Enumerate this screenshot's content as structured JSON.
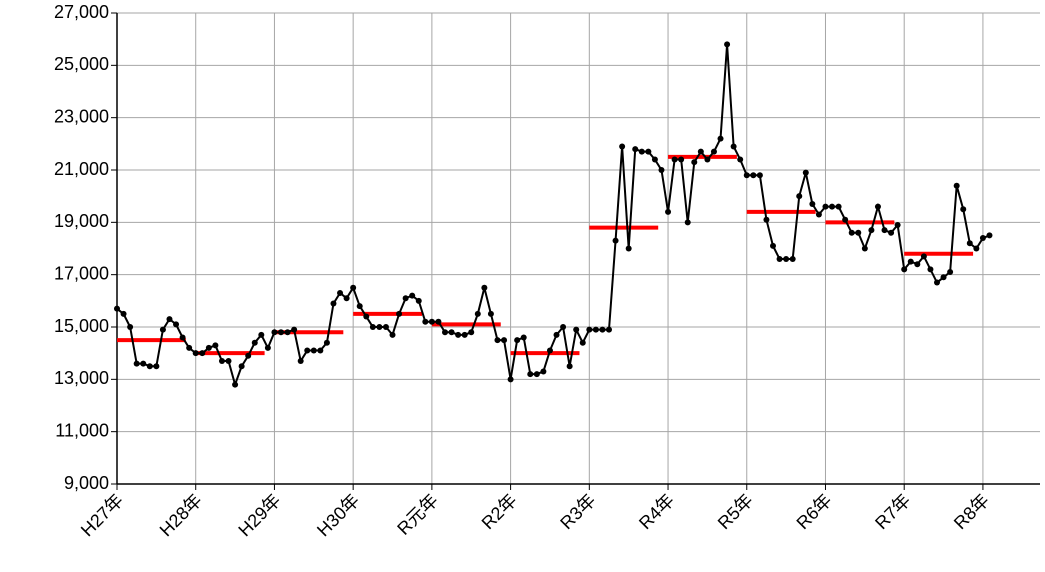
{
  "chart_data": {
    "type": "line",
    "categories": [
      "H27年",
      null,
      null,
      null,
      null,
      null,
      null,
      null,
      null,
      null,
      null,
      null,
      "H28年",
      null,
      null,
      null,
      null,
      null,
      null,
      null,
      null,
      null,
      null,
      null,
      "H29年",
      null,
      null,
      null,
      null,
      null,
      null,
      null,
      null,
      null,
      null,
      null,
      "H30年",
      null,
      null,
      null,
      null,
      null,
      null,
      null,
      null,
      null,
      null,
      null,
      "R元年",
      null,
      null,
      null,
      null,
      null,
      null,
      null,
      null,
      null,
      null,
      null,
      "R2年",
      null,
      null,
      null,
      null,
      null,
      null,
      null,
      null,
      null,
      null,
      null,
      "R3年",
      null,
      null,
      null,
      null,
      null,
      null,
      null,
      null,
      null,
      null,
      null,
      "R4年",
      null,
      null,
      null,
      null,
      null,
      null,
      null,
      null,
      null,
      null,
      null,
      "R5年",
      null,
      null,
      null,
      null,
      null,
      null,
      null,
      null,
      null,
      null,
      null,
      "R6年",
      null,
      null,
      null,
      null,
      null,
      null,
      null,
      null,
      null,
      null,
      null,
      "R7年",
      null,
      null,
      null,
      null,
      null,
      null,
      null,
      null,
      null,
      null,
      null,
      "R8年",
      null
    ],
    "series": [
      {
        "color": "#000000",
        "values": [
          15700,
          15500,
          15000,
          13600,
          13600,
          13500,
          13500,
          14900,
          15300,
          15100,
          14600,
          14200,
          14000,
          14000,
          14200,
          14300,
          13700,
          13700,
          12800,
          13500,
          13900,
          14400,
          14700,
          14200,
          14800,
          14800,
          14800,
          14900,
          13700,
          14100,
          14100,
          14100,
          14400,
          15900,
          16300,
          16100,
          16500,
          15800,
          15400,
          15000,
          15000,
          15000,
          14700,
          15500,
          16100,
          16200,
          16000,
          15200,
          15200,
          15200,
          14800,
          14800,
          14700,
          14700,
          14800,
          15500,
          16500,
          15500,
          14500,
          14500,
          13000,
          14500,
          14600,
          13200,
          13200,
          13300,
          14100,
          14700,
          15000,
          13500,
          14900,
          14400,
          14900,
          14900,
          14900,
          14900,
          18300,
          21900,
          18000,
          21800,
          21700,
          21700,
          21400,
          21000,
          19400,
          21400,
          21400,
          19000,
          21300,
          21700,
          21400,
          21700,
          22200,
          25800,
          21900,
          21400,
          20800,
          20800,
          20800,
          19100,
          18100,
          17600,
          17600,
          17600,
          20000,
          20900,
          19700,
          19300,
          19600,
          19600,
          19600,
          19100,
          18600,
          18600,
          18000,
          18700,
          19600,
          18700,
          18600,
          18900,
          17200,
          17500,
          17400,
          17700,
          17200,
          16700,
          16900,
          17100,
          20400,
          19500,
          18200,
          18000,
          18400,
          18500
        ]
      }
    ],
    "annual_averages": {
      "color": "#ff0000",
      "values": [
        14500,
        14000,
        14800,
        15500,
        15100,
        14000,
        18800,
        21500,
        19400,
        19000,
        17800
      ]
    },
    "ylim": [
      9000,
      27000
    ],
    "yticks": [
      {
        "value": 9000,
        "label": "9,000"
      },
      {
        "value": 11000,
        "label": "11,000"
      },
      {
        "value": 13000,
        "label": "13,000"
      },
      {
        "value": 15000,
        "label": "15,000"
      },
      {
        "value": 17000,
        "label": "17,000"
      },
      {
        "value": 19000,
        "label": "19,000"
      },
      {
        "value": 21000,
        "label": "21,000"
      },
      {
        "value": 23000,
        "label": "23,000"
      },
      {
        "value": 25000,
        "label": "25,000"
      },
      {
        "value": 27000,
        "label": "27,000"
      }
    ],
    "grid": true
  }
}
